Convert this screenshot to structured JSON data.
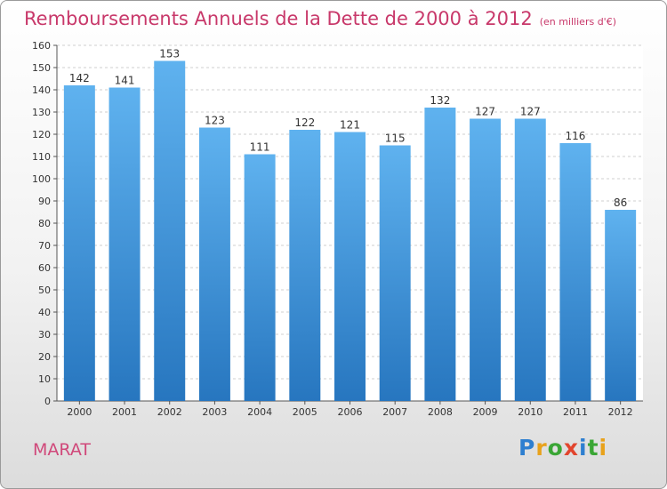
{
  "chart_data": {
    "type": "bar",
    "title": "Remboursements Annuels de la Dette de 2000 à 2012",
    "subtitle": "(en milliers d'€)",
    "categories": [
      "2000",
      "2001",
      "2002",
      "2003",
      "2004",
      "2005",
      "2006",
      "2007",
      "2008",
      "2009",
      "2010",
      "2011",
      "2012"
    ],
    "values": [
      142,
      141,
      153,
      123,
      111,
      122,
      121,
      115,
      132,
      127,
      127,
      116,
      86
    ],
    "ylim": [
      0,
      160
    ],
    "yticks": [
      0,
      10,
      20,
      30,
      40,
      50,
      60,
      70,
      80,
      90,
      100,
      110,
      120,
      130,
      140,
      150,
      160
    ],
    "grid": true,
    "bar_color": "#3f8fd6",
    "xlabel": "",
    "ylabel": ""
  },
  "commune": "MARAT",
  "logo": {
    "text": "Proxiti",
    "letters": [
      "P",
      "r",
      "o",
      "x",
      "i",
      "t",
      "i"
    ],
    "colors": [
      "#2e7fd0",
      "#e8a21c",
      "#3aa635",
      "#e2452e",
      "#2e7fd0",
      "#3aa635",
      "#e8a21c"
    ]
  }
}
